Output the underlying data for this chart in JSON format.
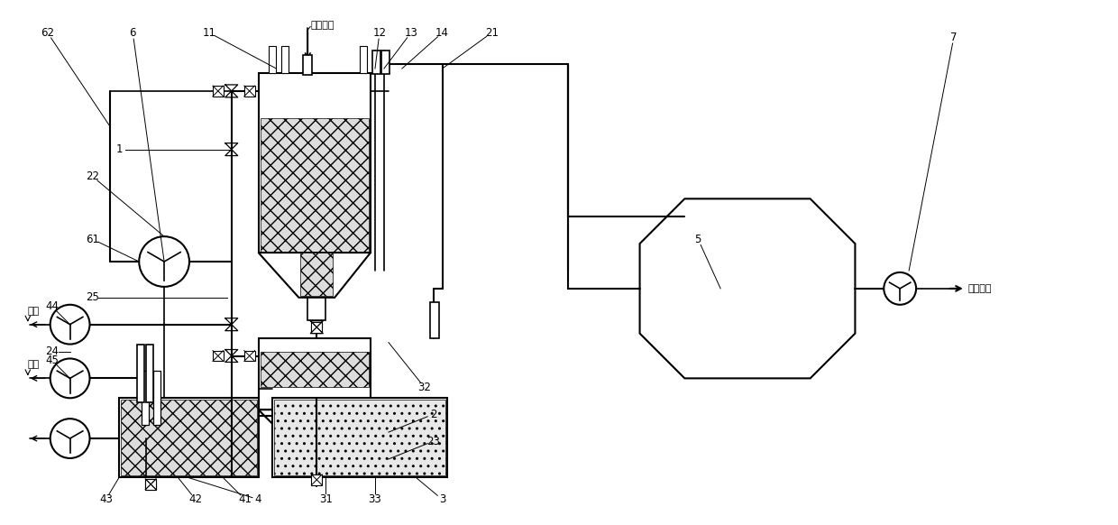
{
  "bg_color": "#ffffff",
  "lc": "#000000",
  "labels": {
    "smoke_inlet": "烟气进口",
    "gas_outlet": "气体出口",
    "replenish1": "补液",
    "replenish2": "补液"
  },
  "figsize": [
    12.4,
    5.82
  ],
  "dpi": 100
}
